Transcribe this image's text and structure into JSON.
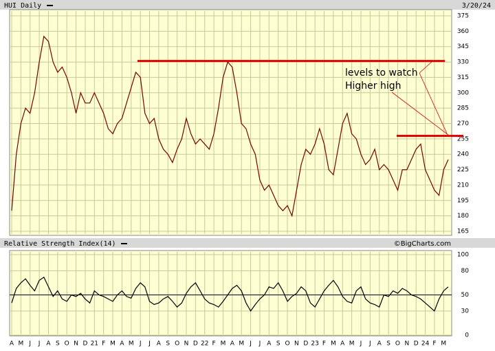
{
  "chart_data": [
    {
      "type": "line",
      "title": "HUI Daily",
      "subtitle": "3/20/24",
      "annotations": [
        "levels to watch",
        "Higher high"
      ],
      "levels": [
        331,
        258
      ],
      "level_color": "#e00000",
      "ylim": [
        165,
        375
      ],
      "yticks": [
        165,
        180,
        195,
        210,
        225,
        240,
        255,
        270,
        285,
        300,
        315,
        330,
        345,
        360,
        375
      ],
      "grid": true,
      "series": [
        {
          "name": "HUI",
          "color": "#7a0000",
          "values": [
            185,
            240,
            270,
            285,
            280,
            300,
            330,
            355,
            350,
            330,
            320,
            325,
            315,
            300,
            280,
            300,
            290,
            290,
            300,
            290,
            280,
            265,
            260,
            270,
            275,
            290,
            305,
            320,
            315,
            280,
            270,
            275,
            255,
            245,
            240,
            232,
            245,
            255,
            275,
            260,
            250,
            255,
            250,
            245,
            260,
            285,
            315,
            330,
            325,
            300,
            270,
            265,
            250,
            240,
            215,
            205,
            210,
            200,
            190,
            185,
            190,
            180,
            205,
            230,
            245,
            240,
            250,
            265,
            250,
            225,
            220,
            245,
            270,
            280,
            260,
            255,
            240,
            230,
            235,
            245,
            225,
            230,
            225,
            215,
            205,
            225,
            225,
            235,
            245,
            250,
            225,
            215,
            205,
            200,
            225,
            235
          ]
        }
      ]
    },
    {
      "type": "line",
      "title": "Relative Strength Index(14)",
      "source": "©BigCharts.com",
      "categories": [
        "A",
        null,
        "M",
        null,
        "J",
        null,
        "J",
        null,
        "A",
        null,
        "S",
        null,
        "O",
        null,
        "N",
        null,
        "D",
        null,
        "21",
        null,
        "F",
        null,
        "M",
        null,
        "A",
        null,
        "M",
        null,
        "J",
        null,
        "J",
        null,
        "A",
        null,
        "S",
        null,
        "O",
        null,
        "N",
        null,
        "D",
        null,
        "22",
        null,
        "F",
        null,
        "M",
        null,
        "A",
        null,
        "M",
        null,
        "J",
        null,
        "J",
        null,
        "A",
        null,
        "S",
        null,
        "O",
        null,
        "N",
        null,
        "D",
        null,
        "23",
        null,
        "F",
        null,
        "M",
        null,
        "A",
        null,
        "M",
        null,
        "J",
        null,
        "J",
        null,
        "A",
        null,
        "S",
        null,
        "O",
        null,
        "N",
        null,
        "D",
        null,
        "24",
        null,
        "F",
        null,
        "M",
        null
      ],
      "ylim": [
        0,
        100
      ],
      "yticks": [
        0,
        30,
        50,
        80,
        100
      ],
      "grid": true,
      "series": [
        {
          "name": "RSI",
          "color": "#000000",
          "values": [
            40,
            58,
            65,
            70,
            62,
            55,
            68,
            72,
            60,
            48,
            55,
            45,
            42,
            50,
            48,
            52,
            45,
            40,
            55,
            50,
            48,
            45,
            42,
            50,
            55,
            48,
            46,
            58,
            65,
            60,
            42,
            38,
            40,
            45,
            48,
            42,
            35,
            40,
            52,
            60,
            65,
            55,
            45,
            40,
            38,
            35,
            42,
            50,
            58,
            62,
            55,
            40,
            30,
            38,
            45,
            50,
            60,
            58,
            65,
            55,
            42,
            48,
            52,
            60,
            55,
            40,
            35,
            45,
            55,
            62,
            68,
            60,
            48,
            42,
            40,
            55,
            60,
            45,
            40,
            38,
            35,
            50,
            48,
            55,
            52,
            58,
            55,
            50,
            48,
            45,
            40,
            35,
            30,
            45,
            55,
            60
          ]
        }
      ]
    }
  ]
}
